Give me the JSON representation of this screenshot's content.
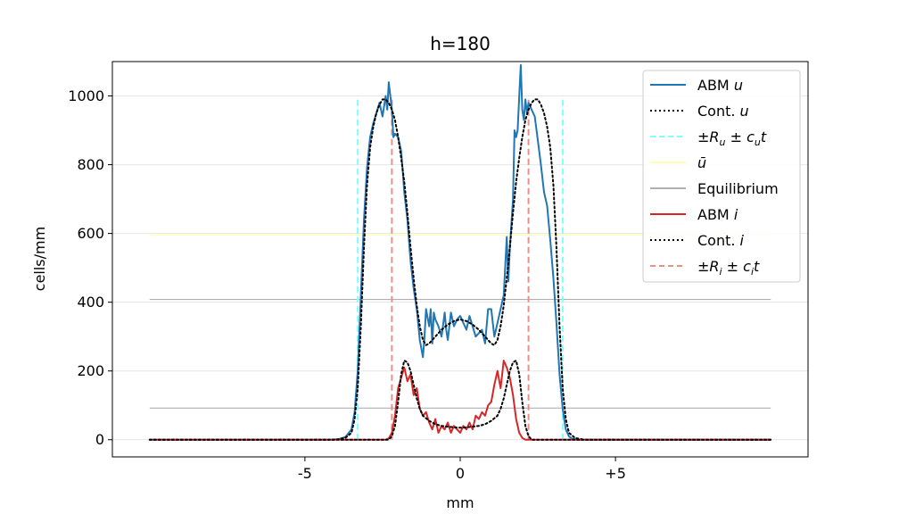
{
  "chart_data": {
    "type": "line",
    "title": "h=180",
    "xlabel": "mm",
    "ylabel": "cells/mm",
    "xlim": [
      -11.2,
      11.2
    ],
    "ylim": [
      -50,
      1100
    ],
    "xticks": [
      {
        "value": -5,
        "label": "-5"
      },
      {
        "value": 0,
        "label": "0"
      },
      {
        "value": 5,
        "label": "+5"
      }
    ],
    "yticks": [
      {
        "value": 0,
        "label": "0"
      },
      {
        "value": 200,
        "label": "200"
      },
      {
        "value": 400,
        "label": "400"
      },
      {
        "value": 600,
        "label": "600"
      },
      {
        "value": 800,
        "label": "800"
      },
      {
        "value": 1000,
        "label": "1000"
      }
    ],
    "grid": "horizontal",
    "legend_position": "top-right",
    "legend": [
      {
        "label": "ABM u",
        "series": "abm_u"
      },
      {
        "label": "Cont. u",
        "series": "cont_u"
      },
      {
        "label": "±Ru ± cut",
        "series": "ru_bounds"
      },
      {
        "label": "ū",
        "series": "u_bar"
      },
      {
        "label": "Equilibrium",
        "series": "equilibrium"
      },
      {
        "label": "ABM i",
        "series": "abm_i"
      },
      {
        "label": "Cont. i",
        "series": "cont_i"
      },
      {
        "label": "±Ri ± cit",
        "series": "ri_bounds"
      }
    ],
    "colors": {
      "abm_u": "#1f77b4",
      "abm_i": "#d62728",
      "cont": "#000000",
      "ru_bounds": "#80ffff",
      "u_bar": "#ffffb3",
      "equilibrium": "#b0b0b0",
      "ri_bounds": "#e8908a",
      "grid": "#e6e6e6"
    },
    "series": [
      {
        "id": "abm_u",
        "style": "solid",
        "x": [
          -10,
          -4.2,
          -3.9,
          -3.7,
          -3.5,
          -3.4,
          -3.3,
          -3.2,
          -3.1,
          -3.0,
          -2.9,
          -2.8,
          -2.7,
          -2.6,
          -2.5,
          -2.4,
          -2.35,
          -2.3,
          -2.2,
          -2.15,
          -2.1,
          -2.0,
          -1.9,
          -1.85,
          -1.8,
          -1.7,
          -1.6,
          -1.5,
          -1.4,
          -1.3,
          -1.2,
          -1.15,
          -1.1,
          -1.0,
          -0.95,
          -0.9,
          -0.85,
          -0.8,
          -0.7,
          -0.6,
          -0.5,
          -0.45,
          -0.4,
          -0.3,
          -0.2,
          -0.1,
          0.0,
          0.1,
          0.2,
          0.3,
          0.4,
          0.5,
          0.6,
          0.7,
          0.8,
          0.9,
          1.0,
          1.1,
          1.2,
          1.3,
          1.4,
          1.5,
          1.55,
          1.6,
          1.7,
          1.75,
          1.8,
          1.85,
          1.9,
          1.95,
          2.0,
          2.05,
          2.1,
          2.15,
          2.2,
          2.3,
          2.4,
          2.5,
          2.6,
          2.7,
          2.8,
          2.9,
          3.0,
          3.1,
          3.2,
          3.3,
          3.4,
          3.5,
          3.6,
          3.8,
          4.2,
          10
        ],
        "y": [
          0,
          0,
          2,
          8,
          30,
          80,
          200,
          420,
          640,
          790,
          880,
          920,
          950,
          980,
          940,
          1000,
          960,
          1040,
          960,
          880,
          890,
          880,
          840,
          780,
          720,
          640,
          520,
          440,
          380,
          290,
          240,
          300,
          380,
          330,
          380,
          280,
          370,
          350,
          330,
          300,
          370,
          320,
          290,
          370,
          330,
          350,
          360,
          340,
          320,
          360,
          330,
          300,
          310,
          320,
          280,
          380,
          380,
          300,
          340,
          380,
          420,
          590,
          460,
          560,
          700,
          900,
          880,
          900,
          1000,
          1090,
          960,
          930,
          990,
          950,
          980,
          960,
          940,
          870,
          800,
          720,
          680,
          580,
          470,
          340,
          190,
          90,
          30,
          10,
          3,
          0,
          0,
          0
        ]
      },
      {
        "id": "cont_u",
        "style": "dotted",
        "x": [
          -10,
          -4.0,
          -3.7,
          -3.5,
          -3.4,
          -3.3,
          -3.2,
          -3.1,
          -3.0,
          -2.9,
          -2.8,
          -2.7,
          -2.6,
          -2.5,
          -2.4,
          -2.3,
          -2.2,
          -2.1,
          -2.0,
          -1.9,
          -1.8,
          -1.7,
          -1.6,
          -1.5,
          -1.4,
          -1.3,
          -1.2,
          -1.1,
          -1.0,
          -0.8,
          -0.6,
          -0.4,
          -0.2,
          0.0,
          0.2,
          0.4,
          0.6,
          0.8,
          1.0,
          1.1,
          1.2,
          1.3,
          1.4,
          1.5,
          1.6,
          1.7,
          1.8,
          1.9,
          2.0,
          2.1,
          2.2,
          2.3,
          2.4,
          2.5,
          2.6,
          2.7,
          2.8,
          2.9,
          3.0,
          3.1,
          3.2,
          3.3,
          3.4,
          3.5,
          3.7,
          4.0,
          10
        ],
        "y": [
          0,
          0,
          5,
          20,
          60,
          150,
          330,
          560,
          740,
          850,
          910,
          950,
          975,
          990,
          990,
          980,
          960,
          930,
          880,
          820,
          750,
          660,
          560,
          470,
          390,
          330,
          290,
          275,
          280,
          300,
          320,
          335,
          345,
          350,
          345,
          335,
          320,
          300,
          280,
          275,
          290,
          330,
          390,
          470,
          560,
          660,
          750,
          820,
          880,
          930,
          960,
          980,
          990,
          990,
          975,
          950,
          910,
          850,
          740,
          560,
          330,
          150,
          60,
          20,
          5,
          0,
          0
        ]
      },
      {
        "id": "abm_i",
        "style": "solid",
        "x": [
          -10,
          -2.4,
          -2.3,
          -2.2,
          -2.1,
          -2.0,
          -1.9,
          -1.8,
          -1.7,
          -1.6,
          -1.5,
          -1.4,
          -1.3,
          -1.2,
          -1.1,
          -1.0,
          -0.9,
          -0.8,
          -0.7,
          -0.6,
          -0.5,
          -0.4,
          -0.3,
          -0.2,
          -0.1,
          0.0,
          0.1,
          0.2,
          0.3,
          0.4,
          0.5,
          0.6,
          0.7,
          0.8,
          0.9,
          1.0,
          1.1,
          1.2,
          1.3,
          1.4,
          1.5,
          1.6,
          1.7,
          1.8,
          1.9,
          2.0,
          2.1,
          2.2,
          2.3,
          10
        ],
        "y": [
          0,
          0,
          4,
          20,
          70,
          150,
          180,
          210,
          170,
          190,
          130,
          150,
          90,
          70,
          80,
          50,
          30,
          60,
          20,
          40,
          30,
          50,
          20,
          40,
          30,
          20,
          40,
          30,
          50,
          30,
          70,
          60,
          80,
          70,
          100,
          110,
          160,
          200,
          150,
          230,
          210,
          180,
          130,
          60,
          20,
          5,
          0,
          0,
          0,
          0
        ]
      },
      {
        "id": "cont_i",
        "style": "dotted",
        "x": [
          -10,
          -2.3,
          -2.2,
          -2.1,
          -2.0,
          -1.9,
          -1.8,
          -1.7,
          -1.6,
          -1.5,
          -1.4,
          -1.3,
          -1.2,
          -1.0,
          -0.8,
          -0.6,
          -0.4,
          -0.2,
          0.0,
          0.2,
          0.4,
          0.6,
          0.8,
          1.0,
          1.2,
          1.3,
          1.4,
          1.5,
          1.6,
          1.7,
          1.8,
          1.9,
          2.0,
          2.1,
          2.2,
          2.3,
          10
        ],
        "y": [
          0,
          0,
          10,
          40,
          110,
          190,
          230,
          225,
          200,
          160,
          120,
          90,
          70,
          55,
          45,
          40,
          38,
          36,
          35,
          36,
          38,
          40,
          45,
          55,
          70,
          90,
          120,
          160,
          200,
          225,
          230,
          190,
          110,
          40,
          10,
          0,
          0
        ]
      }
    ],
    "hlines": [
      {
        "id": "u_bar",
        "y": 595,
        "xmin": -10,
        "xmax": 10
      },
      {
        "id": "equilibrium_u",
        "y": 408,
        "xmin": -10,
        "xmax": 10
      },
      {
        "id": "equilibrium_i",
        "y": 92,
        "xmin": -10,
        "xmax": 10
      }
    ],
    "vlines": [
      {
        "id": "ru_left",
        "x": -3.3,
        "ymin": 0,
        "ymax": 1000
      },
      {
        "id": "ru_right",
        "x": 3.3,
        "ymin": 0,
        "ymax": 1000
      },
      {
        "id": "ri_left",
        "x": -2.2,
        "ymin": 0,
        "ymax": 1000
      },
      {
        "id": "ri_right",
        "x": 2.2,
        "ymin": 0,
        "ymax": 1000
      }
    ]
  }
}
